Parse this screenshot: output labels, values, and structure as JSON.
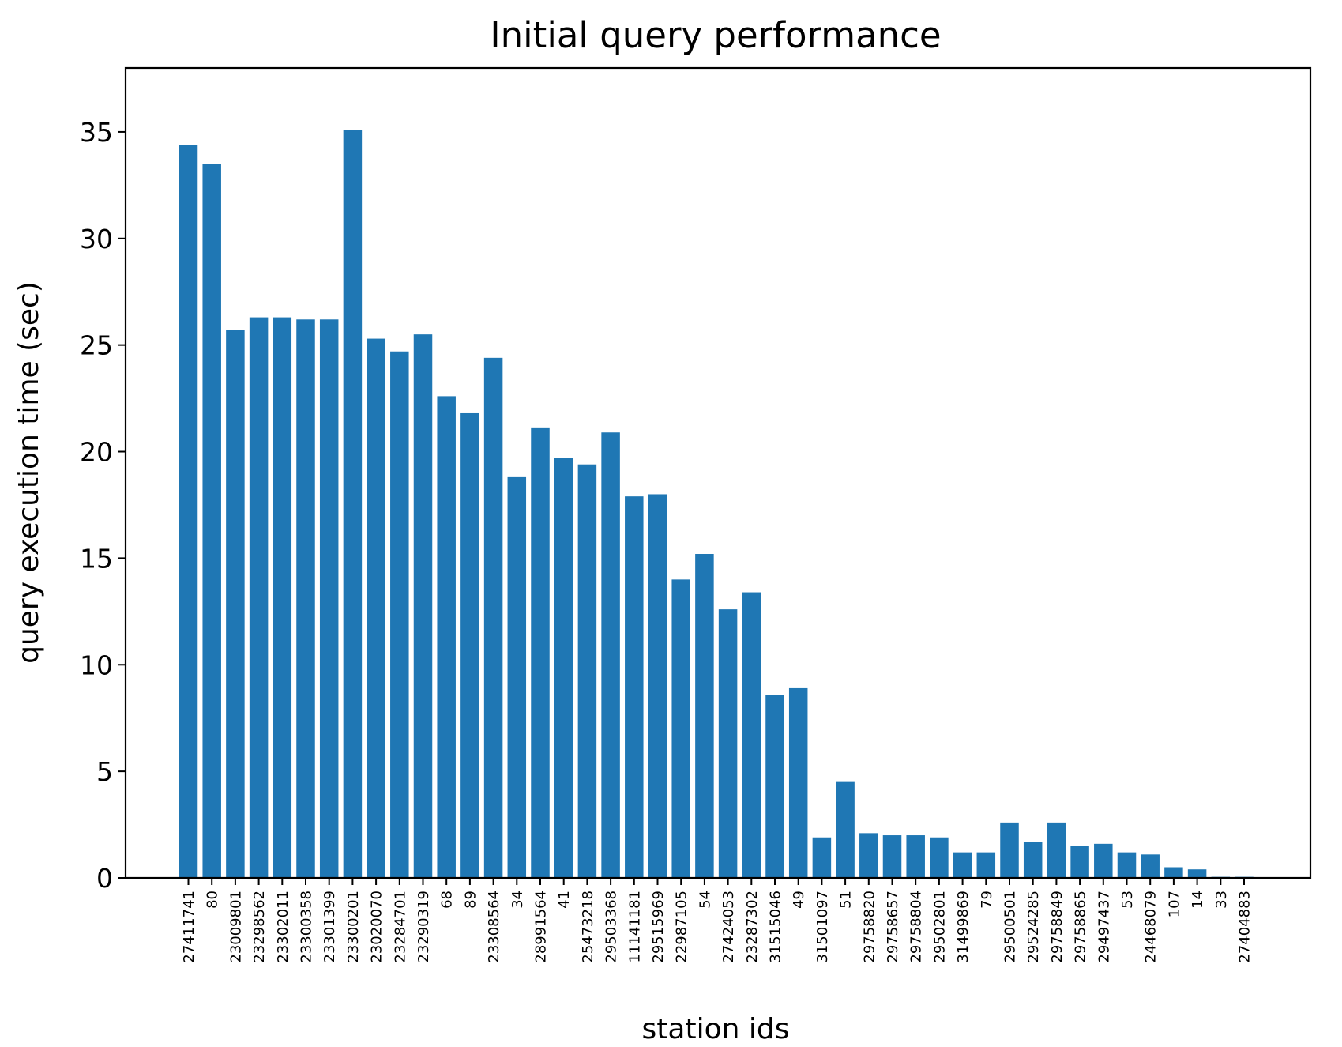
{
  "chart_data": {
    "type": "bar",
    "title": "Initial query performance",
    "xlabel": "station ids",
    "ylabel": "query execution time (sec)",
    "ylim": [
      0,
      38
    ],
    "yticks": [
      0,
      5,
      10,
      15,
      20,
      25,
      30,
      35
    ],
    "grid": false,
    "bar_color": "#1f77b4",
    "categories": [
      "27411741",
      "80",
      "23009801",
      "23298562",
      "23302011",
      "23300358",
      "23301399",
      "23300201",
      "23020070",
      "23284701",
      "23290319",
      "68",
      "89",
      "23308564",
      "34",
      "28991564",
      "41",
      "25473218",
      "29503368",
      "11141181",
      "29515969",
      "22987105",
      "54",
      "27424053",
      "23287302",
      "31515046",
      "49",
      "31501097",
      "51",
      "29758820",
      "29758657",
      "29758804",
      "29502801",
      "31499869",
      "79",
      "29500501",
      "29524285",
      "29758849",
      "29758865",
      "29497437",
      "53",
      "24468079",
      "107",
      "14",
      "33",
      "27404883"
    ],
    "values": [
      34.4,
      33.5,
      25.7,
      26.3,
      26.3,
      26.2,
      26.2,
      35.1,
      25.3,
      24.7,
      25.5,
      22.6,
      21.8,
      24.4,
      18.8,
      21.1,
      19.7,
      19.4,
      20.9,
      17.9,
      18.0,
      14.0,
      15.2,
      12.6,
      13.4,
      8.6,
      8.9,
      1.9,
      4.5,
      2.1,
      2.0,
      2.0,
      1.9,
      1.2,
      1.2,
      2.6,
      1.7,
      2.6,
      1.5,
      1.6,
      1.2,
      1.1,
      0.5,
      0.4,
      0.05,
      0.05
    ]
  }
}
